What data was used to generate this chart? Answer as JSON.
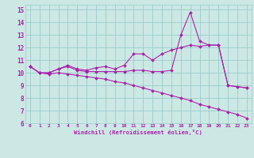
{
  "xlabel": "Windchill (Refroidissement éolien,°C)",
  "xlim": [
    -0.5,
    23.5
  ],
  "ylim": [
    6,
    15.4
  ],
  "yticks": [
    6,
    7,
    8,
    9,
    10,
    11,
    12,
    13,
    14,
    15
  ],
  "xticks": [
    0,
    1,
    2,
    3,
    4,
    5,
    6,
    7,
    8,
    9,
    10,
    11,
    12,
    13,
    14,
    15,
    16,
    17,
    18,
    19,
    20,
    21,
    22,
    23
  ],
  "background_color": "#cce8e4",
  "line_color": "#aa22aa",
  "grid_color": "#99cccc",
  "lines": [
    {
      "x": [
        0,
        1,
        2,
        3,
        4,
        5,
        6,
        7,
        8,
        9,
        10,
        11,
        12,
        13,
        14,
        15,
        16,
        17,
        18,
        19,
        20,
        21,
        22,
        23
      ],
      "y": [
        10.5,
        10.0,
        10.0,
        10.3,
        10.5,
        10.2,
        10.1,
        10.1,
        10.1,
        10.1,
        10.1,
        10.2,
        10.2,
        10.1,
        10.1,
        10.2,
        13.0,
        14.8,
        12.5,
        12.2,
        12.2,
        9.0,
        8.9,
        8.8
      ]
    },
    {
      "x": [
        0,
        1,
        2,
        3,
        4,
        5,
        6,
        7,
        8,
        9,
        10,
        11,
        12,
        13,
        14,
        15,
        16,
        17,
        18,
        19,
        20,
        21,
        22,
        23
      ],
      "y": [
        10.5,
        10.0,
        10.0,
        10.3,
        10.6,
        10.3,
        10.2,
        10.4,
        10.5,
        10.3,
        10.6,
        11.5,
        11.5,
        11.0,
        11.5,
        11.8,
        12.0,
        12.2,
        12.1,
        12.2,
        12.2,
        9.0,
        8.9,
        8.8
      ]
    },
    {
      "x": [
        0,
        1,
        2,
        3,
        4,
        5,
        6,
        7,
        8,
        9,
        10,
        11,
        12,
        13,
        14,
        15,
        16,
        17,
        18,
        19,
        20,
        21,
        22,
        23
      ],
      "y": [
        10.5,
        10.0,
        9.9,
        10.0,
        9.9,
        9.8,
        9.7,
        9.6,
        9.5,
        9.3,
        9.2,
        9.0,
        8.8,
        8.6,
        8.4,
        8.2,
        8.0,
        7.8,
        7.5,
        7.3,
        7.1,
        6.9,
        6.7,
        6.4
      ]
    }
  ]
}
